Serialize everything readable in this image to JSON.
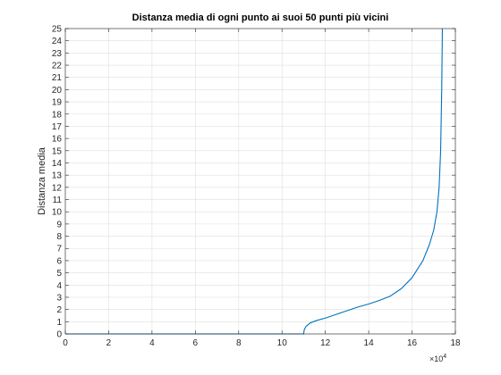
{
  "chart_data": {
    "type": "line",
    "title": "Distanza media di ogni punto ai suoi 50 punti più vicini",
    "xlabel": "",
    "ylabel": "Distanza media",
    "x_exponent_label": "×10",
    "x_exponent_power": "4",
    "xlim": [
      0,
      18
    ],
    "ylim": [
      0,
      25
    ],
    "x_ticks": [
      "0",
      "2",
      "4",
      "6",
      "8",
      "10",
      "12",
      "14",
      "16",
      "18"
    ],
    "y_ticks": [
      "0",
      "1",
      "2",
      "3",
      "4",
      "5",
      "6",
      "7",
      "8",
      "9",
      "10",
      "11",
      "12",
      "13",
      "14",
      "15",
      "16",
      "17",
      "18",
      "19",
      "20",
      "21",
      "22",
      "23",
      "24",
      "25"
    ],
    "grid": true,
    "series": [
      {
        "color": "#0072BD",
        "points": [
          [
            0,
            0
          ],
          [
            11.0,
            0
          ],
          [
            11.02,
            0.3
          ],
          [
            11.1,
            0.6
          ],
          [
            11.3,
            0.9
          ],
          [
            11.6,
            1.1
          ],
          [
            12.0,
            1.3
          ],
          [
            12.5,
            1.6
          ],
          [
            13.0,
            1.9
          ],
          [
            13.5,
            2.2
          ],
          [
            14.0,
            2.45
          ],
          [
            14.5,
            2.75
          ],
          [
            15.0,
            3.1
          ],
          [
            15.5,
            3.7
          ],
          [
            16.0,
            4.6
          ],
          [
            16.5,
            6.0
          ],
          [
            16.8,
            7.3
          ],
          [
            17.0,
            8.5
          ],
          [
            17.15,
            10.0
          ],
          [
            17.25,
            12.0
          ],
          [
            17.32,
            15.0
          ],
          [
            17.37,
            20.0
          ],
          [
            17.4,
            25.0
          ]
        ]
      }
    ]
  }
}
